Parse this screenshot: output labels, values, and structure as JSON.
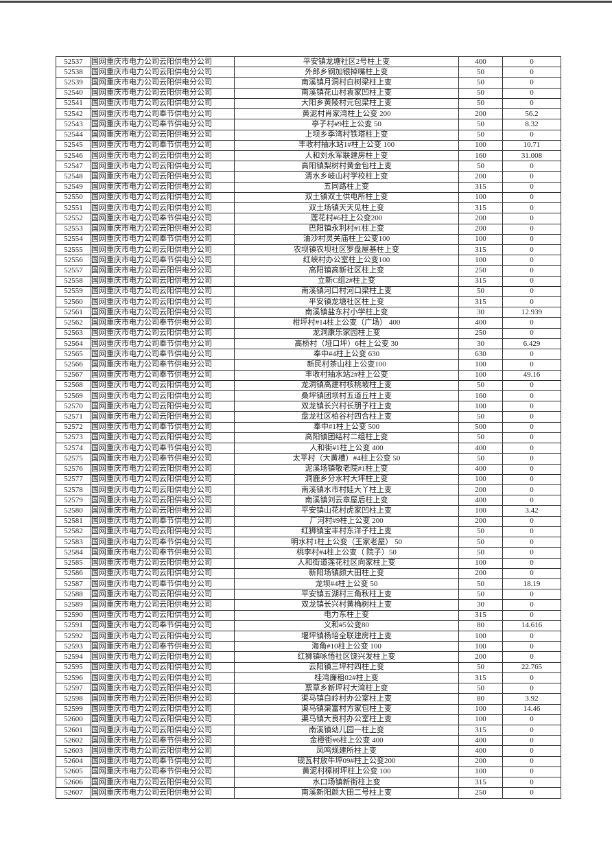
{
  "colors": {
    "background": "#ffffff",
    "table_border": "#2e2e2e",
    "text": "#1c1c1c",
    "top_edge_line": "#474747"
  },
  "table": {
    "rows": [
      [
        "52537",
        "国网重庆市电力公司云阳供电分公司",
        "平安镇龙塘社区2号柱上变",
        "400",
        "0"
      ],
      [
        "52538",
        "国网重庆市电力公司云阳供电分公司",
        "外郎乡钢加银掉嘴柱上变",
        "50",
        "0"
      ],
      [
        "52539",
        "国网重庆市电力公司云阳供电分公司",
        "南溪镇月洞村白树梁柱上变",
        "50",
        "0"
      ],
      [
        "52540",
        "国网重庆市电力公司云阳供电分公司",
        "南溪镇花山村袁家凹柱上变",
        "50",
        "0"
      ],
      [
        "52541",
        "国网重庆市电力公司云阳供电分公司",
        "大阳乡黄陵村元包梁柱上变",
        "50",
        "0"
      ],
      [
        "52542",
        "国网重庆市电力公司奉节供电分公司",
        "黄泥村肖家湾柱上公变 200",
        "200",
        "56.2"
      ],
      [
        "52543",
        "国网重庆市电力公司奉节供电分公司",
        "亭子村#9柱上公变 50",
        "50",
        "8.32"
      ],
      [
        "52544",
        "国网重庆市电力公司云阳供电分公司",
        "上坝乡季湾村铁塔柱上变",
        "50",
        "0"
      ],
      [
        "52545",
        "国网重庆市电力公司奉节供电分公司",
        "丰收村抽水站1#柱上公变 100",
        "100",
        "10.71"
      ],
      [
        "52546",
        "国网重庆市电力公司云阳供电分公司",
        "人和刘永军联建房柱上变",
        "160",
        "31.008"
      ],
      [
        "52547",
        "国网重庆市电力公司云阳供电分公司",
        "高阳镇梨树村黄金包柱上变",
        "50",
        "0"
      ],
      [
        "52548",
        "国网重庆市电力公司云阳供电分公司",
        "清水乡岐山村学校柱上变",
        "200",
        "0"
      ],
      [
        "52549",
        "国网重庆市电力公司云阳供电分公司",
        "五同路柱上变",
        "315",
        "0"
      ],
      [
        "52550",
        "国网重庆市电力公司云阳供电分公司",
        "双土镇双土供电所柱上变",
        "100",
        "0"
      ],
      [
        "52551",
        "国网重庆市电力公司云阳供电分公司",
        "双土场镇天天见柱上变",
        "315",
        "0"
      ],
      [
        "52552",
        "国网重庆市电力公司奉节供电分公司",
        "莲花村#6柱上公变200",
        "200",
        "0"
      ],
      [
        "52553",
        "国网重庆市电力公司云阳供电分公司",
        "巴阳镇永利村#1柱上变",
        "200",
        "0"
      ],
      [
        "52554",
        "国网重庆市电力公司奉节供电分公司",
        "油沙村灵关庙柱上公变100",
        "100",
        "0"
      ],
      [
        "52555",
        "国网重庆市电力公司云阳供电分公司",
        "农坝镇农坝社区罗盘屋基柱上变",
        "315",
        "0"
      ],
      [
        "52556",
        "国网重庆市电力公司奉节供电分公司",
        "红峡村办公室柱上公变100",
        "100",
        "0"
      ],
      [
        "52557",
        "国网重庆市电力公司云阳供电分公司",
        "高阳镇高新社区柱上变",
        "250",
        "0"
      ],
      [
        "52558",
        "国网重庆市电力公司云阳供电分公司",
        "立新C组2#柱上变",
        "315",
        "0"
      ],
      [
        "52559",
        "国网重庆市电力公司云阳供电分公司",
        "南溪镇河口村河口梁柱上变",
        "50",
        "0"
      ],
      [
        "52560",
        "国网重庆市电力公司云阳供电分公司",
        "平安镇龙塘社区柱上变",
        "315",
        "0"
      ],
      [
        "52561",
        "国网重庆市电力公司云阳供电分公司",
        "南溪镇盐东村小学柱上变",
        "30",
        "12.939"
      ],
      [
        "52562",
        "国网重庆市电力公司奉节供电分公司",
        "柑坪村#14柱上公变（广场）  400",
        "400",
        "0"
      ],
      [
        "52563",
        "国网重庆市电力公司云阳供电分公司",
        "龙洞康乐家园柱上变",
        "250",
        "0"
      ],
      [
        "52564",
        "国网重庆市电力公司奉节供电分公司",
        "高桥村（垭口坪）6柱上公变  30",
        "30",
        "6.429"
      ],
      [
        "52565",
        "国网重庆市电力公司奉节供电分公司",
        "奉中#4柱上公变 630",
        "630",
        "0"
      ],
      [
        "52566",
        "国网重庆市电力公司奉节供电分公司",
        "新民村茶山柱上公变100",
        "100",
        "0"
      ],
      [
        "52567",
        "国网重庆市电力公司奉节供电分公司",
        "丰收村抽水站2#柱上公变",
        "100",
        "49.16"
      ],
      [
        "52568",
        "国网重庆市电力公司云阳供电分公司",
        "龙洞镇高建村核桃坡柱上变",
        "50",
        "0"
      ],
      [
        "52569",
        "国网重庆市电力公司云阳供电分公司",
        "桑坪镇团坝村五道丘柱上变",
        "160",
        "0"
      ],
      [
        "52570",
        "国网重庆市电力公司云阳供电分公司",
        "双龙镇长兴村长朋子柱上变",
        "100",
        "0"
      ],
      [
        "52571",
        "国网重庆市电力公司云阳供电分公司",
        "盘龙社区柏谷村四合柱上变",
        "50",
        "0"
      ],
      [
        "52572",
        "国网重庆市电力公司奉节供电分公司",
        "奉中#1柱上公变 500",
        "500",
        "0"
      ],
      [
        "52573",
        "国网重庆市电力公司云阳供电分公司",
        "高阳镇团结村二组柱上变",
        "50",
        "0"
      ],
      [
        "52574",
        "国网重庆市电力公司奉节供电分公司",
        "人和街#1柱上公变 400",
        "400",
        "0"
      ],
      [
        "52575",
        "国网重庆市电力公司奉节供电分公司",
        "太平村（大黄槽）#4柱上公变 50",
        "50",
        "0"
      ],
      [
        "52576",
        "国网重庆市电力公司云阳供电分公司",
        "泥溪场镇敬老院#1柱上变",
        "400",
        "0"
      ],
      [
        "52577",
        "国网重庆市电力公司云阳供电分公司",
        "洞鹿乡分水村大坪柱上变",
        "100",
        "0"
      ],
      [
        "52578",
        "国网重庆市电力公司云阳供电分公司",
        "南溪镇水市村娃大丫柱上变",
        "200",
        "0"
      ],
      [
        "52579",
        "国网重庆市电力公司云阳供电分公司",
        "南溪镇刘云章屋后柱上变",
        "400",
        "0"
      ],
      [
        "52580",
        "国网重庆市电力公司云阳供电分公司",
        "平安镇山花村虎家凹柱上变",
        "100",
        "3.42"
      ],
      [
        "52581",
        "国网重庆市电力公司奉节供电分公司",
        "厂河村#9柱上公变 200",
        "200",
        "0"
      ],
      [
        "52582",
        "国网重庆市电力公司云阳供电分公司",
        "红狮镇宝丰村东洋子柱上变",
        "50",
        "0"
      ],
      [
        "52583",
        "国网重庆市电力公司奉节供电分公司",
        "明水村1柱上公变（王家老屋） 50",
        "50",
        "0"
      ],
      [
        "52584",
        "国网重庆市电力公司奉节供电分公司",
        "桃李村#4柱上公变（ 院子）50",
        "50",
        "0"
      ],
      [
        "52585",
        "国网重庆市电力公司云阳供电分公司",
        "人和街道莲花社区向家柱上变",
        "100",
        "0"
      ],
      [
        "52586",
        "国网重庆市电力公司云阳供电分公司",
        "新阳场镇颜大田柱上变",
        "200",
        "0"
      ],
      [
        "52587",
        "国网重庆市电力公司奉节供电分公司",
        "龙坝#4柱上公变 50",
        "50",
        "18.19"
      ],
      [
        "52588",
        "国网重庆市电力公司云阳供电分公司",
        "平安镇五湖村三角秋柱上变",
        "50",
        "0"
      ],
      [
        "52589",
        "国网重庆市电力公司云阳供电分公司",
        "双龙镇长兴村黄桷树柱上变",
        "30",
        "0"
      ],
      [
        "52590",
        "国网重庆市电力公司云阳供电分公司",
        "电力东柱上变",
        "315",
        "0"
      ],
      [
        "52591",
        "国网重庆市电力公司奉节供电分公司",
        "义和#5公变80",
        "80",
        "14.616"
      ],
      [
        "52592",
        "国网重庆市电力公司云阳供电分公司",
        "堰坪镇杨培全联建房柱上变",
        "100",
        "0"
      ],
      [
        "52593",
        "国网重庆市电力公司奉节供电分公司",
        "海角#10柱上公变 100",
        "100",
        "0"
      ],
      [
        "52594",
        "国网重庆市电力公司云阳供电分公司",
        "红狮镇咏悟社区饶兴发柱上变",
        "200",
        "0"
      ],
      [
        "52595",
        "国网重庆市电力公司云阳供电分公司",
        "云阳镇三坪村四柱上变",
        "50",
        "22.765"
      ],
      [
        "52596",
        "国网重庆市电力公司云阳供电分公司",
        "桂湾廉租02#柱上变",
        "315",
        "0"
      ],
      [
        "52597",
        "国网重庆市电力公司云阳供电分公司",
        "票草乡新坪村大湾柱上变",
        "50",
        "0"
      ],
      [
        "52598",
        "国网重庆市电力公司云阳供电分公司",
        "渠马镇白岭村办公室柱上变",
        "80",
        "3.92"
      ],
      [
        "52599",
        "国网重庆市电力公司云阳供电分公司",
        "渠马镇渠富村方家包柱上变",
        "100",
        "14.46"
      ],
      [
        "52600",
        "国网重庆市电力公司云阳供电分公司",
        "渠马镇大良村办公室柱上变",
        "100",
        "0"
      ],
      [
        "52601",
        "国网重庆市电力公司云阳供电分公司",
        "南溪镇幼儿园一柱上变",
        "315",
        "0"
      ],
      [
        "52602",
        "国网重庆市电力公司奉节供电分公司",
        "金橙街#6柱上公变 400",
        "400",
        "0"
      ],
      [
        "52603",
        "国网重庆市电力公司云阳供电分公司",
        "凤鸣规建所柱上变",
        "400",
        "0"
      ],
      [
        "52604",
        "国网重庆市电力公司奉节供电分公司",
        "砚瓦村放牛坪09#柱上公变200",
        "200",
        "0"
      ],
      [
        "52605",
        "国网重庆市电力公司奉节供电分公司",
        "黄泥村樟树坪柱上公变 100",
        "100",
        "0"
      ],
      [
        "52606",
        "国网重庆市电力公司云阳供电分公司",
        "水口场镇新街柱上变",
        "315",
        "0"
      ],
      [
        "52607",
        "国网重庆市电力公司云阳供电分公司",
        "南溪新阳颜大田二号柱上变",
        "250",
        "0"
      ]
    ]
  }
}
